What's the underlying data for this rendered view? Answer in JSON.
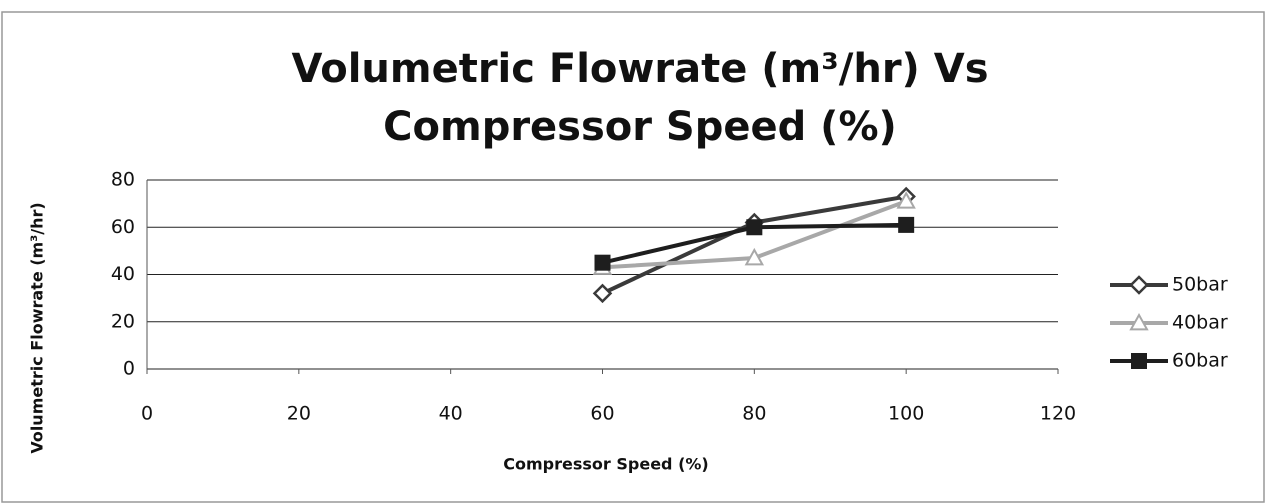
{
  "chart_data": {
    "type": "line",
    "title": "Volumetric Flowrate (m³/hr) Vs Compressor Speed (%)",
    "x_label": "Compressor Speed (%)",
    "y_label": "Volumetric Flowrate (m³/hr)",
    "x": [
      60,
      80,
      100
    ],
    "series": [
      {
        "name": "50bar",
        "color": "#3a3a3a",
        "marker": "diamond",
        "values": [
          32,
          62,
          73
        ]
      },
      {
        "name": "40bar",
        "color": "#a8a8a8",
        "marker": "triangle",
        "values": [
          43,
          47,
          71
        ]
      },
      {
        "name": "60bar",
        "color": "#1e1e1e",
        "marker": "square",
        "values": [
          45,
          60,
          61
        ]
      }
    ],
    "xlim": [
      0,
      120
    ],
    "xticks": [
      0,
      20,
      40,
      60,
      80,
      100,
      120
    ],
    "ylim": [
      0,
      80
    ],
    "yticks": [
      0,
      20,
      40,
      60,
      80
    ],
    "grid": true,
    "legend": "right"
  }
}
